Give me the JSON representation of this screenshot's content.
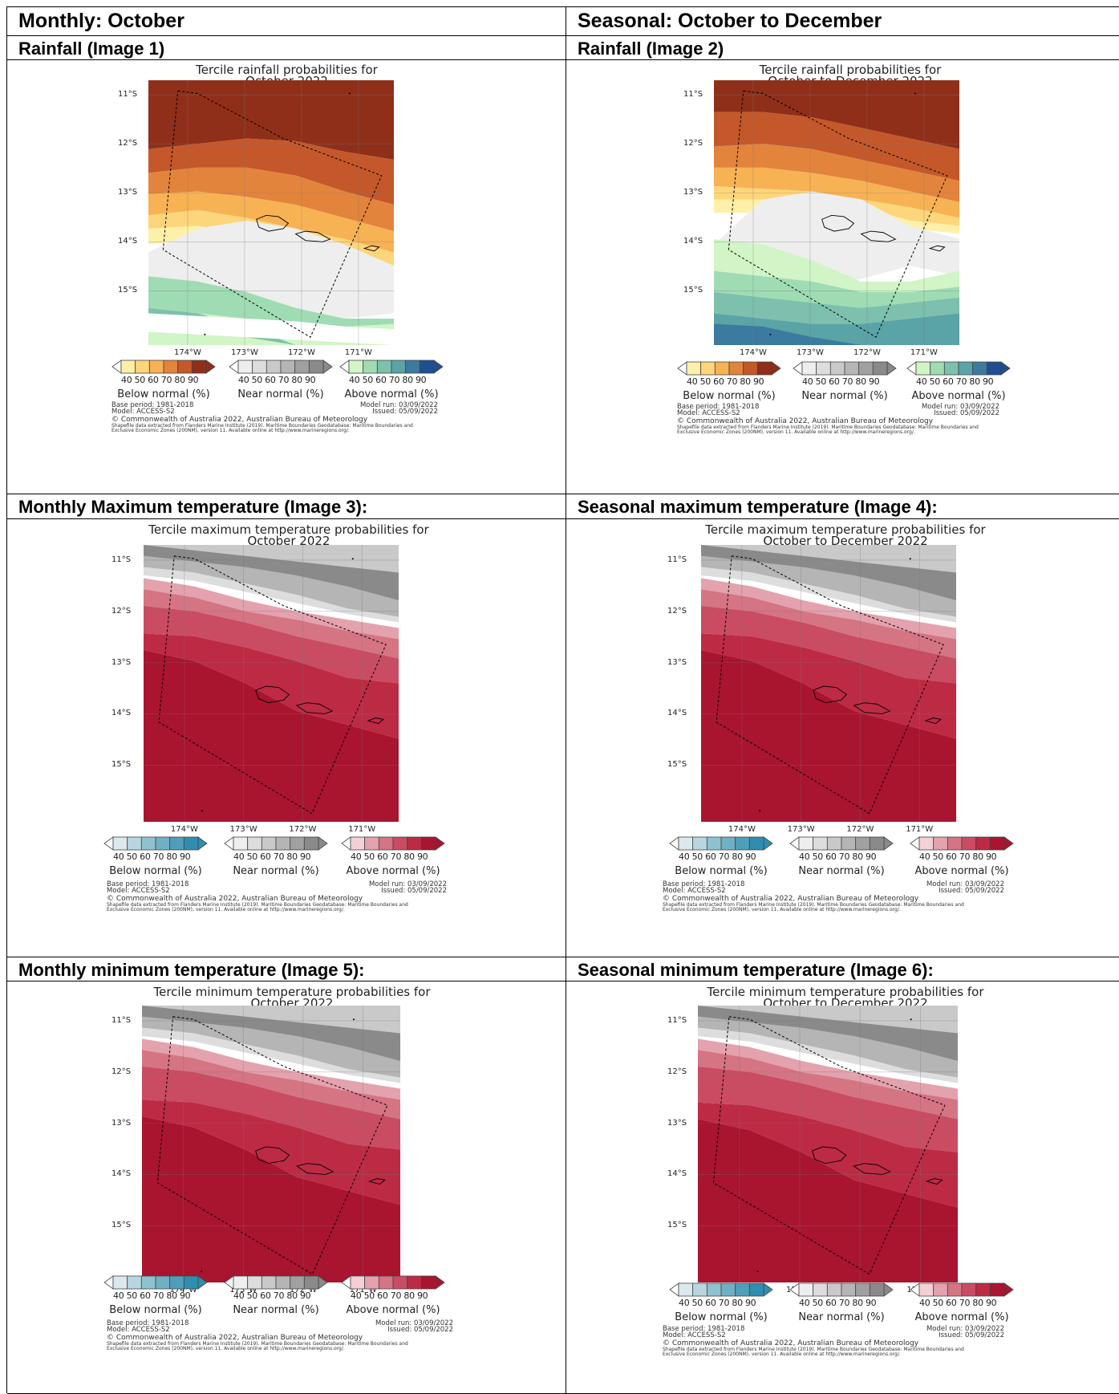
{
  "headers": [
    {
      "text": "Monthly: October"
    },
    {
      "text": "Seasonal: October to December"
    }
  ],
  "sections": [
    "Rainfall (Image 1)",
    "Rainfall (Image 2)",
    "Monthly Maximum temperature (Image 3):",
    "Seasonal maximum temperature (Image 4):",
    "Monthly minimum temperature (Image 5):",
    "Seasonal minimum temperature (Image 6):"
  ],
  "panels": [
    {
      "title1": "Tercile rainfall probabilities for",
      "title2": "October 2022",
      "kind": "rain"
    },
    {
      "title1": "Tercile rainfall probabilities for",
      "title2": "October to December 2022",
      "kind": "rain"
    },
    {
      "title1": "Tercile maximum temperature probabilities for",
      "title2": "October 2022",
      "kind": "temp"
    },
    {
      "title1": "Tercile maximum temperature probabilities for",
      "title2": "October to December 2022",
      "kind": "temp"
    },
    {
      "title1": "Tercile minimum temperature probabilities for",
      "title2": "October 2022",
      "kind": "temp"
    },
    {
      "title1": "Tercile minimum temperature probabilities for",
      "title2": "October to December 2022",
      "kind": "temp"
    }
  ],
  "lat_labels": [
    "11°S",
    "12°S",
    "13°S",
    "14°S",
    "15°S"
  ],
  "lon_labels": [
    "174°W",
    "173°W",
    "172°W",
    "171°W"
  ],
  "legend": {
    "numbers": "40 50 60 70 80 90",
    "below": "Below normal (%)",
    "near": "Near normal (%)",
    "above": "Above normal (%)",
    "rain_below_colors": [
      "#fef0a8",
      "#fdd57a",
      "#f7b254",
      "#e3843c",
      "#c4582a",
      "#8f2f1a"
    ],
    "rain_above_colors": [
      "#d1f5c6",
      "#9fdcb4",
      "#7cc0ad",
      "#5aa3a6",
      "#3c7aa0",
      "#1f4f90"
    ],
    "temp_below_colors": [
      "#dbe9ee",
      "#b7d6e0",
      "#8fc2d0",
      "#6fb0c4",
      "#4f9fba",
      "#2f8db0"
    ],
    "temp_above_colors": [
      "#f2d0d5",
      "#e3a2ad",
      "#d57483",
      "#c94c62",
      "#bd2a44",
      "#a9142e"
    ],
    "near_colors": [
      "#eeeeee",
      "#dddddd",
      "#c9c9c9",
      "#b5b5b5",
      "#a0a0a0",
      "#8a8a8a"
    ]
  },
  "footer": {
    "base": "Base period: 1981-2018",
    "model": "Model: ACCESS-S2",
    "run": "Model run: 03/09/2022",
    "issued": "Issued: 05/09/2022",
    "copyright": "© Commonwealth of Australia 2022, Australian Bureau of Meteorology",
    "source1": "Shapefile data extracted from Flanders Marine Institute (2019). Maritime Boundaries Geodatabase: Maritime Boundaries and",
    "source2": "Exclusive Economic Zones (200NM), version 11. Available online at http://www.marineregions.org/."
  }
}
